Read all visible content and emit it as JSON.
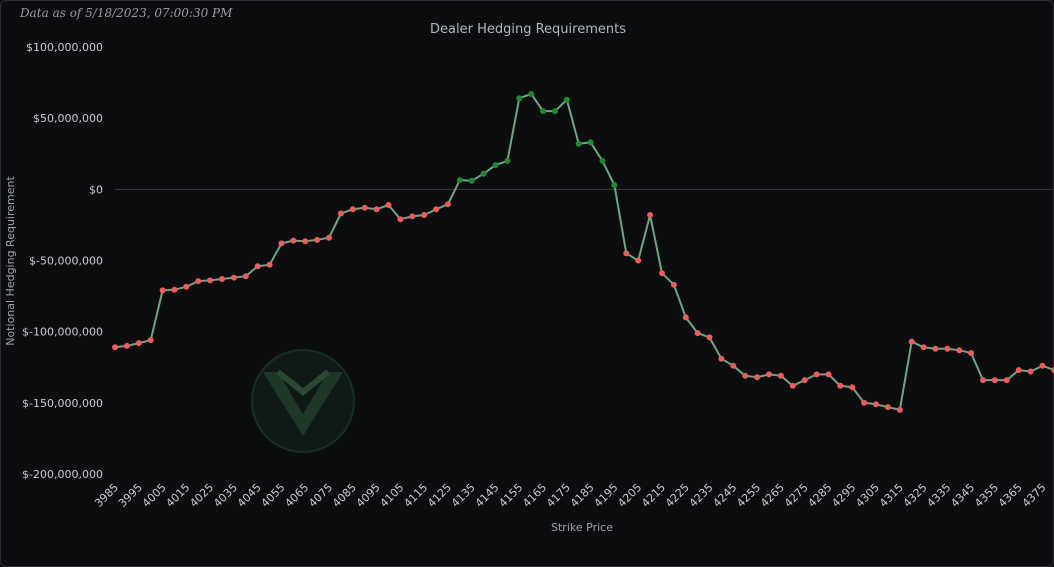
{
  "header": {
    "data_as_of": "Data as of 5/18/2023, 07:00:30 PM"
  },
  "colors": {
    "background": "#0c0d0f",
    "line": "#6fa585",
    "positive_marker": "#1f8a2e",
    "negative_marker": "#ef5a5a",
    "zero_line": "#3a3d42",
    "logo": "#1d3a2d"
  },
  "logo": {
    "icon": "v-shield-logo-icon"
  },
  "chart_data": {
    "type": "line",
    "title": "Dealer Hedging Requirements",
    "xlabel": "Strike Price",
    "ylabel": "Notional Hedging Requirement",
    "ylim": [
      -200000000,
      100000000
    ],
    "yticks": [
      100000000,
      50000000,
      0,
      -50000000,
      -100000000,
      -150000000,
      -200000000
    ],
    "ytick_labels": [
      "$100,000,000",
      "$50,000,000",
      "$0",
      "$-50,000,000",
      "$-100,000,000",
      "$-150,000,000",
      "$-200,000,000"
    ],
    "xlim": [
      3985,
      4379
    ],
    "xtick_labels": [
      "3985",
      "3995",
      "4005",
      "4015",
      "4025",
      "4035",
      "4045",
      "4055",
      "4065",
      "4075",
      "4085",
      "4095",
      "4105",
      "4115",
      "4125",
      "4135",
      "4145",
      "4155",
      "4165",
      "4175",
      "4185",
      "4195",
      "4205",
      "4215",
      "4225",
      "4235",
      "4245",
      "4255",
      "4265",
      "4275",
      "4285",
      "4295",
      "4305",
      "4315",
      "4325",
      "4335",
      "4345",
      "4355",
      "4365",
      "4375"
    ],
    "grid": false,
    "series": [
      {
        "x": [
          3985,
          3990,
          3995,
          4000,
          4005,
          4010,
          4015,
          4020,
          4025,
          4030,
          4035,
          4040,
          4045,
          4050,
          4055,
          4060,
          4065,
          4070,
          4075,
          4080,
          4085,
          4090,
          4095,
          4100,
          4105,
          4110,
          4115,
          4120,
          4125,
          4130,
          4135,
          4140,
          4145,
          4150,
          4155,
          4160,
          4165,
          4170,
          4175,
          4180,
          4185,
          4190,
          4195,
          4200,
          4205,
          4210,
          4215,
          4220,
          4225,
          4230,
          4235,
          4240,
          4245,
          4250,
          4255,
          4260,
          4265,
          4270,
          4275,
          4280,
          4285,
          4290,
          4295,
          4300,
          4305,
          4310,
          4315,
          4320,
          4325,
          4330,
          4335,
          4340,
          4345,
          4350,
          4355,
          4360,
          4365,
          4370,
          4375,
          4380
        ],
        "values": [
          -111000000,
          -110000000,
          -108000000,
          -106000000,
          -71000000,
          -70500000,
          -68500000,
          -64500000,
          -64000000,
          -63000000,
          -62000000,
          -61000000,
          -54000000,
          -53000000,
          -38000000,
          -36000000,
          -36500000,
          -35500000,
          -34000000,
          -17000000,
          -14000000,
          -13000000,
          -14000000,
          -11000000,
          -21000000,
          -19000000,
          -18000000,
          -14000000,
          -10500000,
          6500000,
          6000000,
          11000000,
          17000000,
          20000000,
          64000000,
          67000000,
          55000000,
          55000000,
          63000000,
          32000000,
          33000000,
          20000000,
          3000000,
          -45000000,
          -50000000,
          -18000000,
          -59000000,
          -67000000,
          -90000000,
          -101000000,
          -104000000,
          -119000000,
          -124000000,
          -131000000,
          -132000000,
          -130000000,
          -131000000,
          -138000000,
          -134000000,
          -130000000,
          -130000000,
          -138000000,
          -139000000,
          -150000000,
          -151000000,
          -153000000,
          -155000000,
          -107000000,
          -111000000,
          -112000000,
          -112000000,
          -113000000,
          -115000000,
          -134000000,
          -134000000,
          -134000000,
          -127000000,
          -128000000,
          -124000000,
          -127000000
        ]
      }
    ]
  }
}
